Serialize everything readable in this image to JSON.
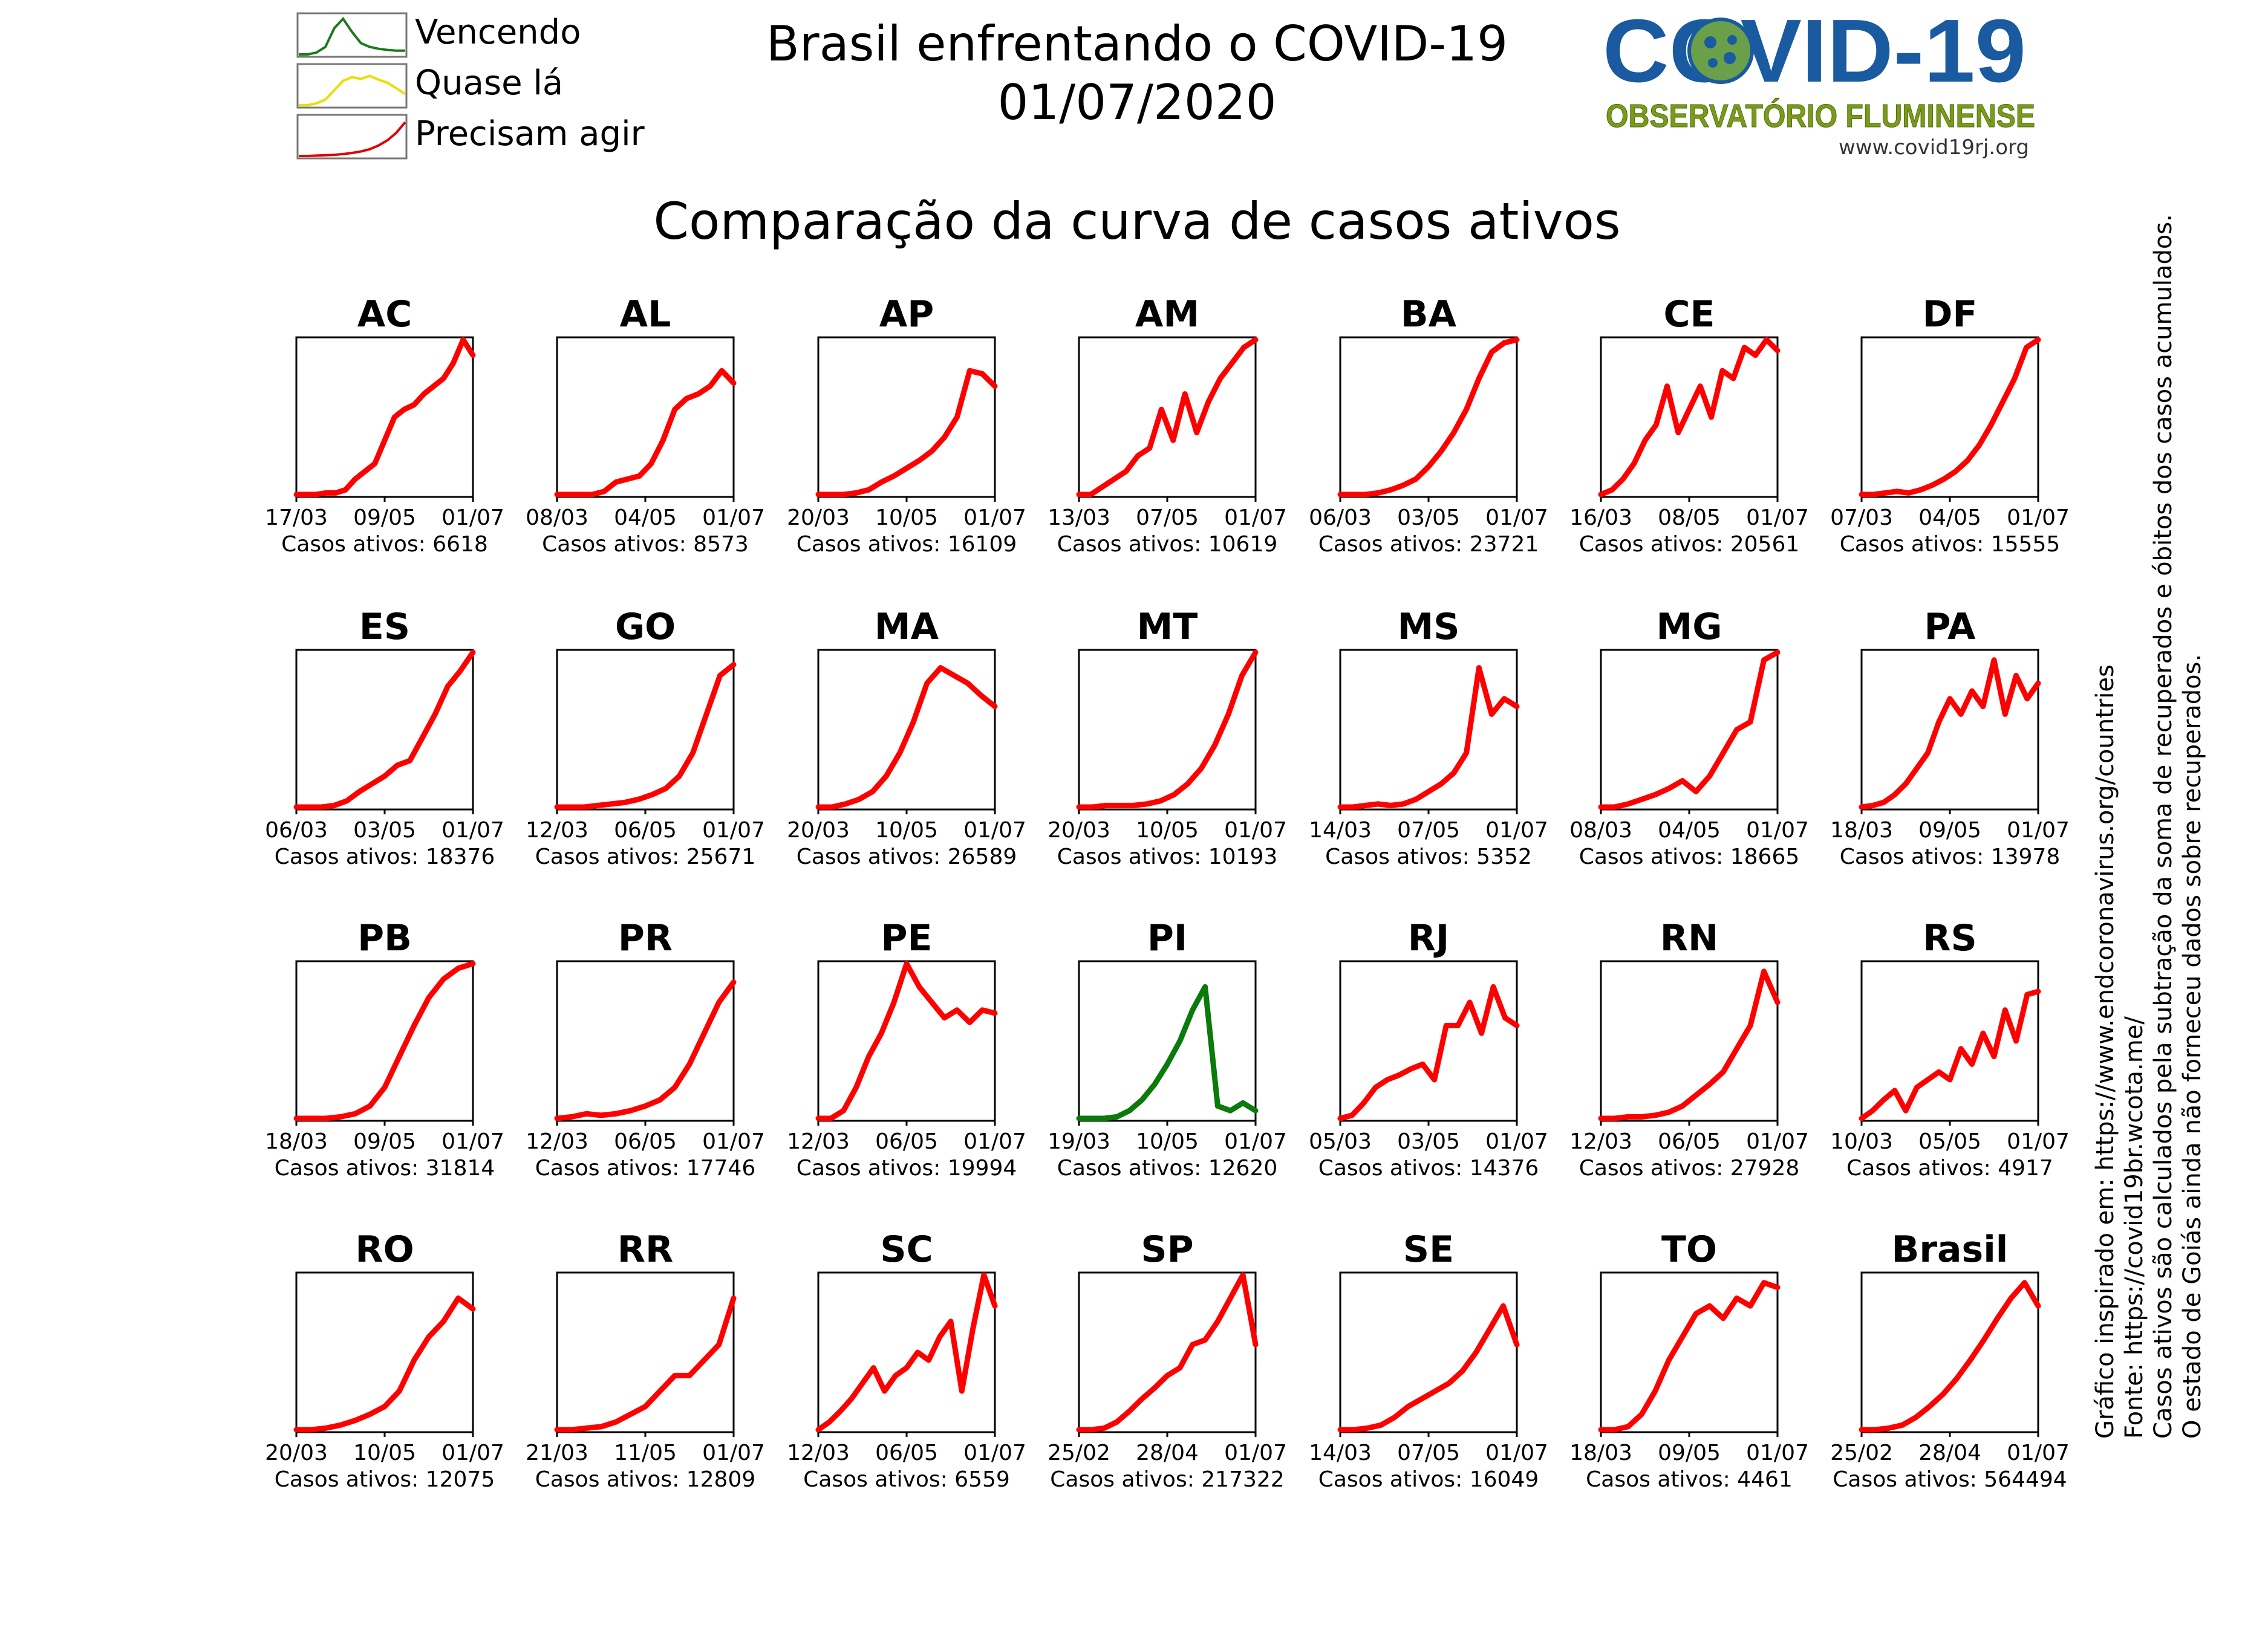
{
  "header": {
    "title_line1": "Brasil enfrentando o COVID-19",
    "title_line2": "01/07/2020",
    "subtitle": "Comparação da curva de casos ativos"
  },
  "legend": [
    {
      "label": "Vencendo",
      "color": "#1a7a1a",
      "shape": "peak-then-fall"
    },
    {
      "label": "Quase lá",
      "color": "#e8e000",
      "shape": "plateau"
    },
    {
      "label": "Precisam agir",
      "color": "#e00000",
      "shape": "rising"
    }
  ],
  "logo": {
    "word": "COVID-19",
    "subtitle": "OBSERVATÓRIO FLUMINENSE",
    "url": "www.covid19rj.org",
    "brand_color": "#1a5aa0",
    "subtitle_color": "#7a9a1a"
  },
  "side_notes": [
    "Gráfico inspirado em: https://www.endcoronavirus.org/countries",
    "Fonte: https://covid19br.wcota.me/",
    "Casos ativos são calculados pela subtração da soma de recuperados e óbitos dos casos acumulados.",
    "O estado de Goiás ainda não forneceu dados sobre recuperados."
  ],
  "colors": {
    "precisam_agir": "#ff0000",
    "vencendo": "#0a7a0a",
    "quase_la": "#e8e000"
  },
  "chart_data": {
    "type": "line",
    "y_axis": "normalized active cases (0 to state maximum), no ticks",
    "value_label_prefix": "Casos ativos: ",
    "panels": [
      {
        "state": "AC",
        "ticks": [
          "17/03",
          "09/05",
          "01/07"
        ],
        "casos_ativos": "6618",
        "status": "Precisam agir",
        "y": [
          0,
          0,
          0,
          0.01,
          0.01,
          0.03,
          0.1,
          0.15,
          0.2,
          0.35,
          0.5,
          0.55,
          0.58,
          0.65,
          0.7,
          0.75,
          0.85,
          1.0,
          0.9
        ]
      },
      {
        "state": "AL",
        "ticks": [
          "08/03",
          "04/05",
          "01/07"
        ],
        "casos_ativos": "8573",
        "status": "Precisam agir",
        "y": [
          0,
          0,
          0,
          0,
          0.02,
          0.08,
          0.1,
          0.12,
          0.2,
          0.35,
          0.55,
          0.62,
          0.65,
          0.7,
          0.8,
          0.72
        ]
      },
      {
        "state": "AP",
        "ticks": [
          "20/03",
          "10/05",
          "01/07"
        ],
        "casos_ativos": "16109",
        "status": "Precisam agir",
        "y": [
          0,
          0,
          0,
          0.01,
          0.03,
          0.08,
          0.12,
          0.17,
          0.22,
          0.28,
          0.37,
          0.5,
          0.8,
          0.78,
          0.7
        ]
      },
      {
        "state": "AM",
        "ticks": [
          "13/03",
          "07/05",
          "01/07"
        ],
        "casos_ativos": "10619",
        "status": "Precisam agir",
        "y": [
          0,
          0,
          0.05,
          0.1,
          0.15,
          0.25,
          0.3,
          0.55,
          0.35,
          0.65,
          0.4,
          0.6,
          0.75,
          0.85,
          0.95,
          1.0
        ]
      },
      {
        "state": "BA",
        "ticks": [
          "06/03",
          "03/05",
          "01/07"
        ],
        "casos_ativos": "23721",
        "status": "Precisam agir",
        "y": [
          0,
          0,
          0,
          0.01,
          0.03,
          0.06,
          0.1,
          0.18,
          0.28,
          0.4,
          0.55,
          0.75,
          0.92,
          0.98,
          1.0
        ]
      },
      {
        "state": "CE",
        "ticks": [
          "16/03",
          "08/05",
          "01/07"
        ],
        "casos_ativos": "20561",
        "status": "Precisam agir",
        "y": [
          0,
          0.03,
          0.1,
          0.2,
          0.35,
          0.45,
          0.7,
          0.4,
          0.55,
          0.7,
          0.5,
          0.8,
          0.75,
          0.95,
          0.9,
          1.0,
          0.93
        ]
      },
      {
        "state": "DF",
        "ticks": [
          "07/03",
          "04/05",
          "01/07"
        ],
        "casos_ativos": "15555",
        "status": "Precisam agir",
        "y": [
          0,
          0,
          0.01,
          0.02,
          0.01,
          0.03,
          0.06,
          0.1,
          0.15,
          0.22,
          0.32,
          0.45,
          0.6,
          0.75,
          0.95,
          1.0
        ]
      },
      {
        "state": "ES",
        "ticks": [
          "06/03",
          "03/05",
          "01/07"
        ],
        "casos_ativos": "18376",
        "status": "Precisam agir",
        "y": [
          0,
          0,
          0,
          0.01,
          0.04,
          0.1,
          0.15,
          0.2,
          0.27,
          0.3,
          0.45,
          0.6,
          0.78,
          0.88,
          1.0
        ]
      },
      {
        "state": "GO",
        "ticks": [
          "12/03",
          "06/05",
          "01/07"
        ],
        "casos_ativos": "25671",
        "status": "Precisam agir",
        "y": [
          0,
          0,
          0,
          0.01,
          0.02,
          0.03,
          0.05,
          0.08,
          0.12,
          0.2,
          0.35,
          0.6,
          0.85,
          0.92
        ]
      },
      {
        "state": "MA",
        "ticks": [
          "20/03",
          "10/05",
          "01/07"
        ],
        "casos_ativos": "26589",
        "status": "Precisam agir",
        "y": [
          0,
          0,
          0.02,
          0.05,
          0.1,
          0.2,
          0.35,
          0.55,
          0.8,
          0.9,
          0.85,
          0.8,
          0.72,
          0.65
        ]
      },
      {
        "state": "MT",
        "ticks": [
          "20/03",
          "10/05",
          "01/07"
        ],
        "casos_ativos": "10193",
        "status": "Precisam agir",
        "y": [
          0,
          0,
          0.01,
          0.01,
          0.01,
          0.02,
          0.04,
          0.08,
          0.15,
          0.25,
          0.4,
          0.6,
          0.85,
          1.0
        ]
      },
      {
        "state": "MS",
        "ticks": [
          "14/03",
          "07/05",
          "01/07"
        ],
        "casos_ativos": "5352",
        "status": "Precisam agir",
        "y": [
          0,
          0,
          0.01,
          0.02,
          0.01,
          0.02,
          0.05,
          0.1,
          0.15,
          0.22,
          0.35,
          0.9,
          0.6,
          0.7,
          0.65
        ]
      },
      {
        "state": "MG",
        "ticks": [
          "08/03",
          "04/05",
          "01/07"
        ],
        "casos_ativos": "18665",
        "status": "Precisam agir",
        "y": [
          0,
          0,
          0.02,
          0.05,
          0.08,
          0.12,
          0.17,
          0.1,
          0.2,
          0.35,
          0.5,
          0.55,
          0.95,
          1.0
        ]
      },
      {
        "state": "PA",
        "ticks": [
          "18/03",
          "09/05",
          "01/07"
        ],
        "casos_ativos": "13978",
        "status": "Precisam agir",
        "y": [
          0,
          0.01,
          0.03,
          0.08,
          0.15,
          0.25,
          0.35,
          0.55,
          0.7,
          0.6,
          0.75,
          0.65,
          0.95,
          0.6,
          0.85,
          0.7,
          0.8
        ]
      },
      {
        "state": "PB",
        "ticks": [
          "18/03",
          "09/05",
          "01/07"
        ],
        "casos_ativos": "31814",
        "status": "Precisam agir",
        "y": [
          0,
          0,
          0,
          0.01,
          0.03,
          0.08,
          0.2,
          0.4,
          0.6,
          0.78,
          0.9,
          0.97,
          1.0
        ]
      },
      {
        "state": "PR",
        "ticks": [
          "12/03",
          "06/05",
          "01/07"
        ],
        "casos_ativos": "17746",
        "status": "Precisam agir",
        "y": [
          0,
          0.01,
          0.03,
          0.02,
          0.03,
          0.05,
          0.08,
          0.12,
          0.2,
          0.35,
          0.55,
          0.75,
          0.88
        ]
      },
      {
        "state": "PE",
        "ticks": [
          "12/03",
          "06/05",
          "01/07"
        ],
        "casos_ativos": "19994",
        "status": "Precisam agir",
        "y": [
          0,
          0,
          0.05,
          0.2,
          0.4,
          0.55,
          0.75,
          1.0,
          0.85,
          0.75,
          0.65,
          0.7,
          0.62,
          0.7,
          0.68
        ]
      },
      {
        "state": "PI",
        "ticks": [
          "19/03",
          "10/05",
          "01/07"
        ],
        "casos_ativos": "12620",
        "status": "Vencendo",
        "y": [
          0,
          0,
          0,
          0.01,
          0.05,
          0.12,
          0.22,
          0.35,
          0.5,
          0.7,
          0.85,
          0.08,
          0.05,
          0.1,
          0.05
        ]
      },
      {
        "state": "RJ",
        "ticks": [
          "05/03",
          "03/05",
          "01/07"
        ],
        "casos_ativos": "14376",
        "status": "Precisam agir",
        "y": [
          0,
          0.02,
          0.1,
          0.2,
          0.25,
          0.28,
          0.32,
          0.35,
          0.25,
          0.6,
          0.6,
          0.75,
          0.55,
          0.85,
          0.65,
          0.6
        ]
      },
      {
        "state": "RN",
        "ticks": [
          "12/03",
          "06/05",
          "01/07"
        ],
        "casos_ativos": "27928",
        "status": "Precisam agir",
        "y": [
          0,
          0,
          0.01,
          0.01,
          0.02,
          0.04,
          0.08,
          0.15,
          0.22,
          0.3,
          0.45,
          0.6,
          0.95,
          0.75
        ]
      },
      {
        "state": "RS",
        "ticks": [
          "10/03",
          "05/05",
          "01/07"
        ],
        "casos_ativos": "4917",
        "status": "Precisam agir",
        "y": [
          0,
          0.05,
          0.12,
          0.18,
          0.05,
          0.2,
          0.25,
          0.3,
          0.25,
          0.45,
          0.35,
          0.55,
          0.4,
          0.7,
          0.5,
          0.8,
          0.82
        ]
      },
      {
        "state": "RO",
        "ticks": [
          "20/03",
          "10/05",
          "01/07"
        ],
        "casos_ativos": "12075",
        "status": "Precisam agir",
        "y": [
          0,
          0,
          0.01,
          0.03,
          0.06,
          0.1,
          0.15,
          0.25,
          0.45,
          0.6,
          0.7,
          0.85,
          0.78
        ]
      },
      {
        "state": "RR",
        "ticks": [
          "21/03",
          "11/05",
          "01/07"
        ],
        "casos_ativos": "12809",
        "status": "Precisam agir",
        "y": [
          0,
          0,
          0.01,
          0.02,
          0.05,
          0.1,
          0.15,
          0.25,
          0.35,
          0.35,
          0.45,
          0.55,
          0.85
        ]
      },
      {
        "state": "SC",
        "ticks": [
          "12/03",
          "06/05",
          "01/07"
        ],
        "casos_ativos": "6559",
        "status": "Precisam agir",
        "y": [
          0,
          0.05,
          0.12,
          0.2,
          0.3,
          0.4,
          0.25,
          0.35,
          0.4,
          0.5,
          0.45,
          0.6,
          0.7,
          0.25,
          0.65,
          1.0,
          0.8
        ]
      },
      {
        "state": "SP",
        "ticks": [
          "25/02",
          "28/04",
          "01/07"
        ],
        "casos_ativos": "217322",
        "status": "Precisam agir",
        "y": [
          0,
          0,
          0.01,
          0.05,
          0.12,
          0.2,
          0.27,
          0.35,
          0.4,
          0.55,
          0.58,
          0.7,
          0.85,
          1.0,
          0.55
        ]
      },
      {
        "state": "SE",
        "ticks": [
          "14/03",
          "07/05",
          "01/07"
        ],
        "casos_ativos": "16049",
        "status": "Precisam agir",
        "y": [
          0,
          0,
          0.01,
          0.03,
          0.08,
          0.15,
          0.2,
          0.25,
          0.3,
          0.38,
          0.5,
          0.65,
          0.8,
          0.55
        ]
      },
      {
        "state": "TO",
        "ticks": [
          "18/03",
          "09/05",
          "01/07"
        ],
        "casos_ativos": "4461",
        "status": "Precisam agir",
        "y": [
          0,
          0,
          0.02,
          0.1,
          0.25,
          0.45,
          0.6,
          0.75,
          0.8,
          0.72,
          0.85,
          0.8,
          0.95,
          0.92
        ]
      },
      {
        "state": "Brasil",
        "ticks": [
          "25/02",
          "28/04",
          "01/07"
        ],
        "casos_ativos": "564494",
        "status": "Precisam agir",
        "y": [
          0,
          0,
          0.01,
          0.03,
          0.08,
          0.15,
          0.23,
          0.33,
          0.45,
          0.58,
          0.72,
          0.85,
          0.95,
          0.8
        ]
      }
    ]
  }
}
